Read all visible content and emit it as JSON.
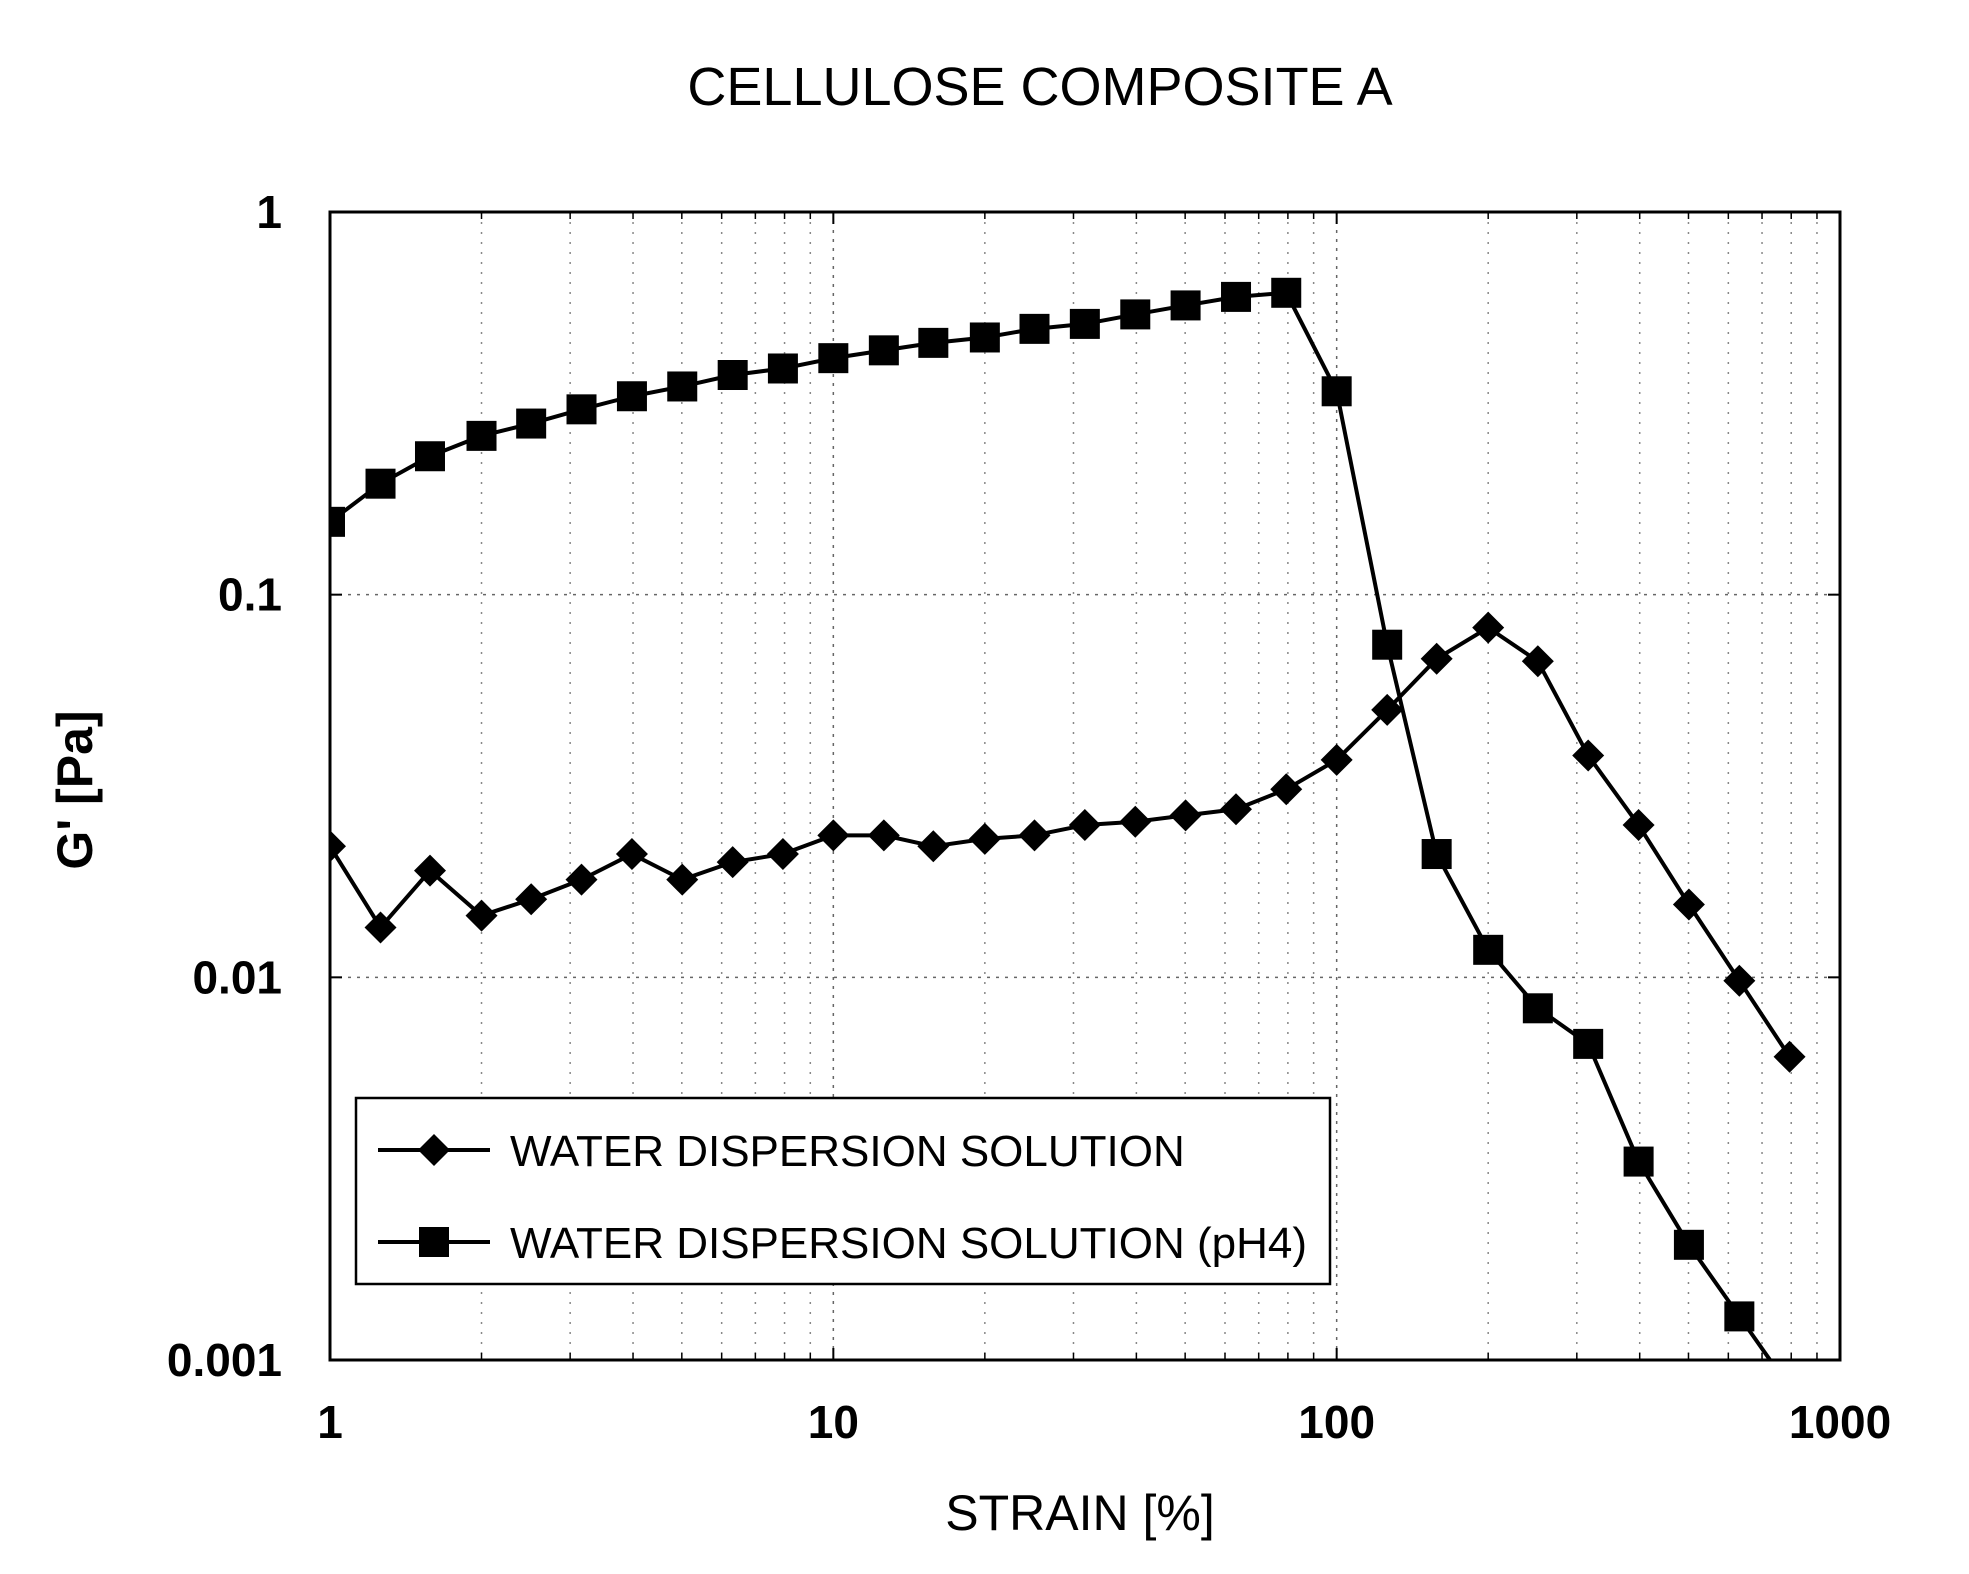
{
  "chart_data": {
    "type": "line",
    "title": "CELLULOSE COMPOSITE A",
    "xlabel": "STRAIN [%]",
    "ylabel": "G' [Pa]",
    "x_scale": "log",
    "y_scale": "log",
    "xlim": [
      1,
      1000
    ],
    "ylim": [
      0.001,
      1
    ],
    "x_ticks": [
      "1",
      "10",
      "100",
      "1000"
    ],
    "y_ticks": [
      "0.001",
      "0.01",
      "0.1",
      "1"
    ],
    "grid": true,
    "legend_position": "lower-left",
    "series": [
      {
        "name": "WATER DISPERSION SOLUTION",
        "marker": "diamond",
        "color": "#000000",
        "x": [
          1.0,
          1.26,
          1.58,
          2.0,
          2.51,
          3.16,
          3.98,
          5.01,
          6.31,
          7.94,
          10.0,
          12.6,
          15.8,
          20.0,
          25.1,
          31.6,
          39.8,
          50.1,
          63.1,
          79.4,
          100,
          126,
          158,
          200,
          251,
          316,
          398,
          501,
          631,
          794
        ],
        "y": [
          0.022,
          0.0135,
          0.019,
          0.0145,
          0.016,
          0.018,
          0.021,
          0.018,
          0.02,
          0.021,
          0.0235,
          0.0235,
          0.022,
          0.023,
          0.0235,
          0.025,
          0.0255,
          0.0265,
          0.0275,
          0.031,
          0.037,
          0.05,
          0.068,
          0.082,
          0.067,
          0.038,
          0.025,
          0.0155,
          0.0098,
          0.0062
        ]
      },
      {
        "name": "WATER DISPERSION SOLUTION (pH4)",
        "marker": "square",
        "color": "#000000",
        "x": [
          1.0,
          1.26,
          1.58,
          2.0,
          2.51,
          3.16,
          3.98,
          5.01,
          6.31,
          7.94,
          10.0,
          12.6,
          15.8,
          20.0,
          25.1,
          31.6,
          39.8,
          50.1,
          63.1,
          79.4,
          100,
          126,
          158,
          200,
          251,
          316,
          398,
          501,
          631
        ],
        "y": [
          0.155,
          0.195,
          0.23,
          0.26,
          0.28,
          0.305,
          0.33,
          0.35,
          0.375,
          0.39,
          0.415,
          0.435,
          0.455,
          0.47,
          0.495,
          0.51,
          0.54,
          0.57,
          0.6,
          0.615,
          0.34,
          0.074,
          0.021,
          0.0118,
          0.0083,
          0.0067,
          0.0033,
          0.002,
          0.0013
        ]
      }
    ]
  }
}
